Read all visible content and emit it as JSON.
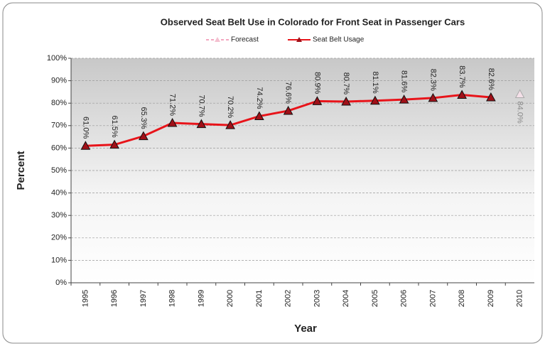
{
  "chart_data": {
    "type": "line",
    "title": "Observed Seat Belt Use in Colorado for Front Seat in Passenger Cars",
    "xlabel": "Year",
    "ylabel": "Percent",
    "categories": [
      "1995",
      "1996",
      "1997",
      "1998",
      "1999",
      "2000",
      "2001",
      "2002",
      "2003",
      "2004",
      "2005",
      "2006",
      "2007",
      "2008",
      "2009",
      "2010"
    ],
    "series": [
      {
        "name": "Forecast",
        "color": "#f4a6c0",
        "values": [
          null,
          null,
          null,
          null,
          null,
          null,
          null,
          null,
          null,
          null,
          null,
          null,
          null,
          null,
          null,
          84.0
        ],
        "value_labels": [
          null,
          null,
          null,
          null,
          null,
          null,
          null,
          null,
          null,
          null,
          null,
          null,
          null,
          null,
          null,
          "84.0%"
        ]
      },
      {
        "name": "Seat Belt Usage",
        "color": "#e8141a",
        "values": [
          61.0,
          61.5,
          65.3,
          71.2,
          70.7,
          70.2,
          74.2,
          76.6,
          80.9,
          80.7,
          81.1,
          81.6,
          82.3,
          83.7,
          82.6,
          null
        ],
        "value_labels": [
          "61.0%",
          "61.5%",
          "65.3%",
          "71.2%",
          "70.7%",
          "70.2%",
          "74.2%",
          "76.6%",
          "80.9%",
          "80.7%",
          "81.1%",
          "81.6%",
          "82.3%",
          "83.7%",
          "82.6%",
          null
        ]
      }
    ],
    "ylim": [
      0,
      100
    ],
    "yticks": [
      {
        "value": 0,
        "label": "0%"
      },
      {
        "value": 10,
        "label": "10%"
      },
      {
        "value": 20,
        "label": "20%"
      },
      {
        "value": 30,
        "label": "30%"
      },
      {
        "value": 40,
        "label": "40%"
      },
      {
        "value": 50,
        "label": "50%"
      },
      {
        "value": 60,
        "label": "60%"
      },
      {
        "value": 70,
        "label": "70%"
      },
      {
        "value": 80,
        "label": "80%"
      },
      {
        "value": 90,
        "label": "90%"
      },
      {
        "value": 100,
        "label": "100%"
      }
    ],
    "grid": true,
    "legend": "top"
  }
}
